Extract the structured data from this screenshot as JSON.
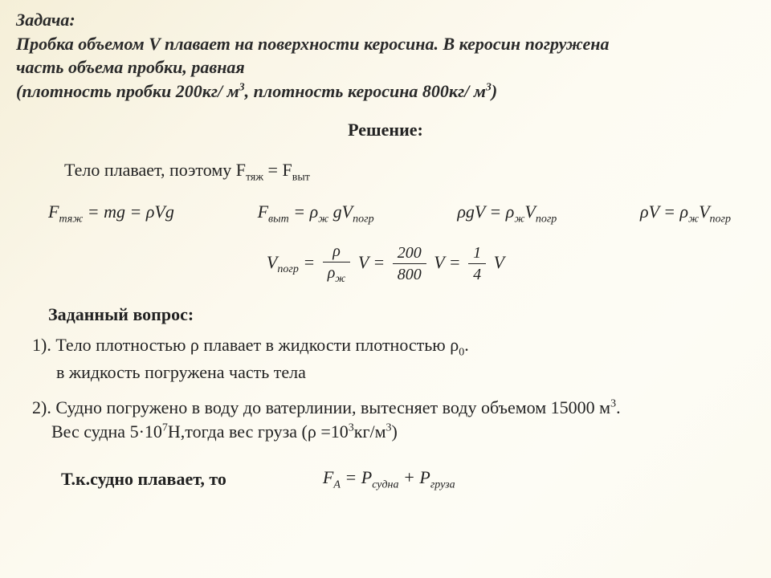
{
  "problem": {
    "title": "Задача:",
    "line1": "Пробка объемом V плавает на поверхности керосина. В керосин погружена",
    "line2": " часть объема пробки, равная",
    "line3_prefix": "(плотность пробки 200кг/ м",
    "line3_mid": ", плотность керосина 800кг/ м",
    "line3_suffix": ")",
    "sup3": "3"
  },
  "solution": {
    "title": "Решение:",
    "floating_text_a": "Тело плавает, поэтому  F",
    "floating_sub1": "тяж",
    "floating_text_b": " = F",
    "floating_sub2": "выт"
  },
  "formulas": {
    "f1_a": "F",
    "f1_sub1": "тяж",
    "f1_b": " = mg = ",
    "f1_c": "ρVg",
    "f2_a": "F",
    "f2_sub1": "выт",
    "f2_b": " = ρ",
    "f2_sub2": "ж",
    "f2_c": " gV",
    "f2_sub3": "погр",
    "f3_a": "ρgV = ρ",
    "f3_sub1": "ж",
    "f3_b": "V",
    "f3_sub2": "погр",
    "f4_a": "ρV = ρ",
    "f4_sub1": "ж",
    "f4_b": "V",
    "f4_sub2": "погр"
  },
  "fraction": {
    "lhs_a": "V",
    "lhs_sub": "погр",
    "eq": " = ",
    "num1": "ρ",
    "den1a": "ρ",
    "den1sub": "ж",
    "V": "V",
    "eq2": " = ",
    "num2": "200",
    "den2": "800",
    "eq3": " = ",
    "num3": "1",
    "den3": "4"
  },
  "question": {
    "title": "Заданный вопрос:",
    "q1_a": "1). Тело плотностью ρ плавает в жидкости плотностью ρ",
    "q1_sub": "0",
    "q1_b": ".",
    "q1_line2": "в жидкость погружена часть тела",
    "q2_a": "2). Судно погружено в воду до ватерлинии, вытесняет воду объемом 15000 м",
    "q2_sup": "3",
    "q2_b": ".",
    "q2_line2_a": "Вес судна 5·10",
    "q2_line2_sup": "7",
    "q2_line2_b": "Н,тогда вес груза       (ρ =10",
    "q2_line2_sup2": "3",
    "q2_line2_c": "кг/м",
    "q2_line2_sup3": "3",
    "q2_line2_d": ")"
  },
  "final": {
    "bold": "Т.к.судно плавает, то",
    "eq_a": "F",
    "eq_sub1": "А",
    "eq_b": " = P",
    "eq_sub2": "судна",
    "eq_c": " + P",
    "eq_sub3": "груза"
  }
}
